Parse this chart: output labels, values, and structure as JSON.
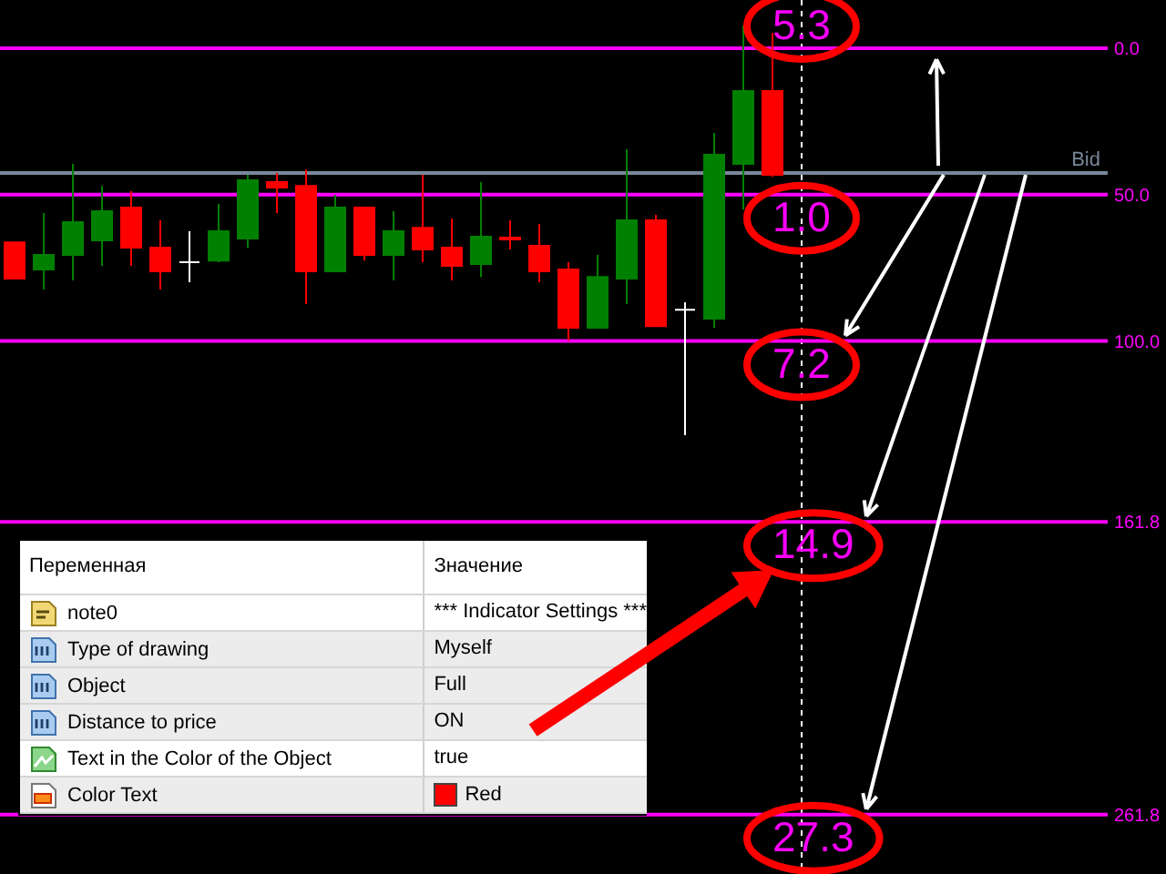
{
  "chart_data": [
    {
      "type": "candlestick",
      "categories": [
        null,
        null,
        null,
        null,
        null,
        null,
        null,
        null,
        null,
        null,
        null,
        null,
        null,
        null,
        null,
        null,
        null,
        null,
        null,
        null,
        null,
        null,
        null,
        null,
        null,
        null,
        null,
        null,
        null,
        null,
        null,
        null,
        null,
        null,
        null,
        null,
        null,
        null
      ],
      "ohlc": [
        [
          66.3,
          78.7,
          66.3,
          78.7
        ],
        [
          75.6,
          82.4,
          56.3,
          70.6
        ],
        [
          70.6,
          79.3,
          39.5,
          59.4
        ],
        [
          65.6,
          74.3,
          47,
          55.7
        ],
        [
          54.4,
          74.3,
          48.8,
          68.1
        ],
        [
          68.1,
          82.4,
          58.8,
          76.2
        ],
        [
          73.1,
          79.9,
          62.5,
          73.1
        ],
        [
          72.5,
          73.1,
          53.2,
          62.5
        ],
        [
          65,
          68.1,
          43.2,
          45.1
        ],
        [
          45.7,
          56.3,
          42.6,
          47.6
        ],
        [
          47,
          87.4,
          41.4,
          76.2
        ],
        [
          76.2,
          76.2,
          50.1,
          54.4
        ],
        [
          54.4,
          72.5,
          54.4,
          70.6
        ],
        [
          70.6,
          79.3,
          55.7,
          62.5
        ],
        [
          61.3,
          73.1,
          43.2,
          68.7
        ],
        [
          68.1,
          79.3,
          58.2,
          74.3
        ],
        [
          73.7,
          78.1,
          45.7,
          64.4
        ],
        [
          64.7,
          68.7,
          58.8,
          65.3
        ],
        [
          67.5,
          79.9,
          60,
          76.2
        ],
        [
          75.6,
          100,
          73.1,
          95.5
        ],
        [
          95.5,
          95.5,
          70.6,
          78.1
        ],
        [
          78.7,
          87.4,
          34.5,
          58.8
        ],
        [
          58.8,
          94.9,
          56.9,
          94.9
        ],
        [
          89.3,
          132.2,
          86.8,
          89.3
        ],
        [
          92.4,
          95.5,
          28.9,
          36.4
        ],
        [
          39.5,
          55.1,
          -7.8,
          14.6
        ],
        [
          14.6,
          43.9,
          -5.3,
          43.2
        ],
        null,
        null,
        null,
        null,
        null,
        null,
        null,
        null,
        null,
        null,
        null
      ],
      "colors": [
        "#ff0000",
        "#008000",
        "#008000",
        "#008000",
        "#ff0000",
        "#ff0000",
        "#ffffff",
        "#008000",
        "#008000",
        "#ff0000",
        "#ff0000",
        "#008000",
        "#ff0000",
        "#008000",
        "#ff0000",
        "#ff0000",
        "#008000",
        "#ff0000",
        "#ff0000",
        "#ff0000",
        "#008000",
        "#008000",
        "#ff0000",
        "#ffffff",
        "#008000",
        "#008000",
        "#ff0000",
        null,
        null,
        null,
        null,
        null,
        null,
        null,
        null,
        null,
        null,
        null
      ],
      "ylim": [
        282.1,
        -16.5
      ],
      "yticks": [
        {
          "value": 0,
          "label": "0.0"
        },
        {
          "value": 50,
          "label": "50.0"
        },
        {
          "value": 100,
          "label": "100.0"
        },
        {
          "value": 161.8,
          "label": "161.8"
        },
        {
          "value": 261.8,
          "label": "261.8"
        }
      ],
      "ref_lines": [
        {
          "axis": "y",
          "value": 42.6,
          "label": "Bid",
          "color": "#778899"
        },
        {
          "axis": "y",
          "value": 0,
          "color": "#ff00ff"
        },
        {
          "axis": "y",
          "value": 50,
          "color": "#ff00ff"
        },
        {
          "axis": "y",
          "value": 100,
          "color": "#ff00ff"
        },
        {
          "axis": "y",
          "value": 161.8,
          "color": "#ff00ff"
        },
        {
          "axis": "y",
          "value": 261.8,
          "color": "#ff00ff"
        }
      ],
      "annotations": [
        "5.3",
        "1.0",
        "7.2",
        "14.9",
        "27.3"
      ]
    },
    {
      "type": "other",
      "annotations": [
        "Переменная",
        "Значение",
        "note0",
        "*** Indicator Settings ***",
        "Type of drawing",
        "Myself",
        "Object",
        "Full",
        "Distance to price",
        "ON",
        "Text in the Color of the Object",
        "true",
        "Color Text",
        "Red"
      ]
    }
  ]
}
